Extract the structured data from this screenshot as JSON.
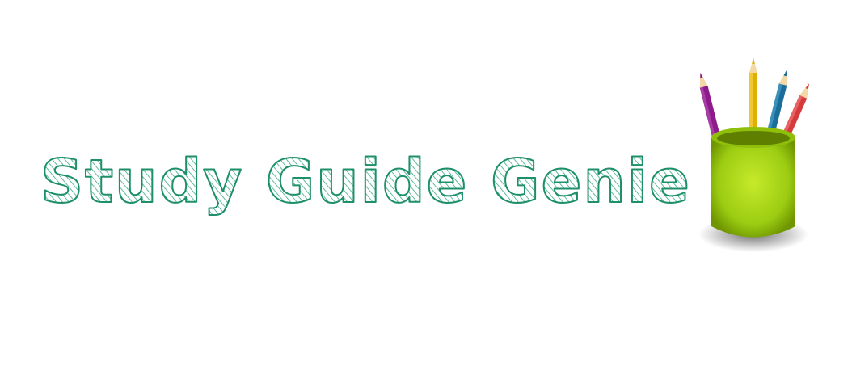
{
  "logo": {
    "title": "Study Guide Genie",
    "text_color": "#1d8f6b",
    "hatch_color": "#3aa886"
  },
  "pencil_cup": {
    "cup_color": "#9ccc12",
    "cup_highlight": "#c6ea2a",
    "cup_shadow": "#6f9600",
    "pencils": [
      {
        "name": "purple",
        "color": "#8e1a8c"
      },
      {
        "name": "yellow",
        "color": "#e0b000"
      },
      {
        "name": "blue",
        "color": "#1a6f9a"
      },
      {
        "name": "red",
        "color": "#d63b3b"
      }
    ]
  }
}
